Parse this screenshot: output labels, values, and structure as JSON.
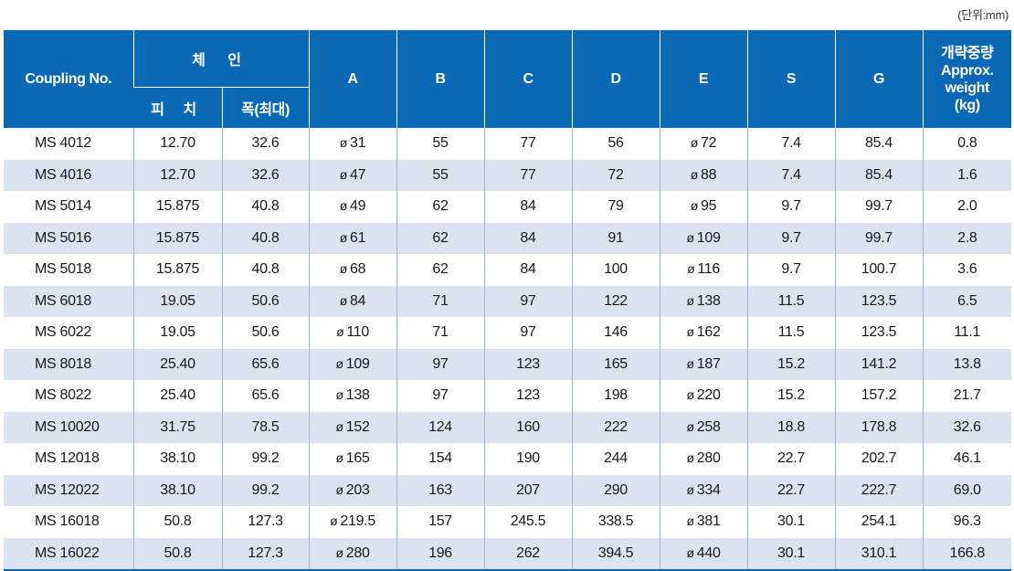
{
  "unit_label": "(단위:mm)",
  "header": {
    "coupling_no": "Coupling No.",
    "chain": "체 인",
    "pitch": "피 치",
    "width_max": "폭(최대)",
    "col_a": "A",
    "col_b": "B",
    "col_c": "C",
    "col_d": "D",
    "col_e": "E",
    "col_s": "S",
    "col_g": "G",
    "weight_ko": "개략중량",
    "weight_en_1": "Approx.",
    "weight_en_2": "weight",
    "weight_unit": "(kg)"
  },
  "diameter_symbol": "ø",
  "rows": [
    {
      "no": "MS 4012",
      "pitch": "12.70",
      "width": "32.6",
      "a": "31",
      "b": "55",
      "c": "77",
      "d": "56",
      "e": "72",
      "s": "7.4",
      "g": "85.4",
      "weight": "0.8"
    },
    {
      "no": "MS 4016",
      "pitch": "12.70",
      "width": "32.6",
      "a": "47",
      "b": "55",
      "c": "77",
      "d": "72",
      "e": "88",
      "s": "7.4",
      "g": "85.4",
      "weight": "1.6"
    },
    {
      "no": "MS 5014",
      "pitch": "15.875",
      "width": "40.8",
      "a": "49",
      "b": "62",
      "c": "84",
      "d": "79",
      "e": "95",
      "s": "9.7",
      "g": "99.7",
      "weight": "2.0"
    },
    {
      "no": "MS 5016",
      "pitch": "15.875",
      "width": "40.8",
      "a": "61",
      "b": "62",
      "c": "84",
      "d": "91",
      "e": "109",
      "s": "9.7",
      "g": "99.7",
      "weight": "2.8"
    },
    {
      "no": "MS 5018",
      "pitch": "15.875",
      "width": "40.8",
      "a": "68",
      "b": "62",
      "c": "84",
      "d": "100",
      "e": "116",
      "s": "9.7",
      "g": "100.7",
      "weight": "3.6"
    },
    {
      "no": "MS 6018",
      "pitch": "19.05",
      "width": "50.6",
      "a": "84",
      "b": "71",
      "c": "97",
      "d": "122",
      "e": "138",
      "s": "11.5",
      "g": "123.5",
      "weight": "6.5"
    },
    {
      "no": "MS 6022",
      "pitch": "19.05",
      "width": "50.6",
      "a": "110",
      "b": "71",
      "c": "97",
      "d": "146",
      "e": "162",
      "s": "11.5",
      "g": "123.5",
      "weight": "11.1"
    },
    {
      "no": "MS 8018",
      "pitch": "25.40",
      "width": "65.6",
      "a": "109",
      "b": "97",
      "c": "123",
      "d": "165",
      "e": "187",
      "s": "15.2",
      "g": "141.2",
      "weight": "13.8"
    },
    {
      "no": "MS 8022",
      "pitch": "25.40",
      "width": "65.6",
      "a": "138",
      "b": "97",
      "c": "123",
      "d": "198",
      "e": "220",
      "s": "15.2",
      "g": "157.2",
      "weight": "21.7"
    },
    {
      "no": "MS 10020",
      "pitch": "31.75",
      "width": "78.5",
      "a": "152",
      "b": "124",
      "c": "160",
      "d": "222",
      "e": "258",
      "s": "18.8",
      "g": "178.8",
      "weight": "32.6"
    },
    {
      "no": "MS 12018",
      "pitch": "38.10",
      "width": "99.2",
      "a": "165",
      "b": "154",
      "c": "190",
      "d": "244",
      "e": "280",
      "s": "22.7",
      "g": "202.7",
      "weight": "46.1"
    },
    {
      "no": "MS 12022",
      "pitch": "38.10",
      "width": "99.2",
      "a": "203",
      "b": "163",
      "c": "207",
      "d": "290",
      "e": "334",
      "s": "22.7",
      "g": "222.7",
      "weight": "69.0"
    },
    {
      "no": "MS 16018",
      "pitch": "50.8",
      "width": "127.3",
      "a": "219.5",
      "b": "157",
      "c": "245.5",
      "d": "338.5",
      "e": "381",
      "s": "30.1",
      "g": "254.1",
      "weight": "96.3"
    },
    {
      "no": "MS 16022",
      "pitch": "50.8",
      "width": "127.3",
      "a": "280",
      "b": "196",
      "c": "262",
      "d": "394.5",
      "e": "440",
      "s": "30.1",
      "g": "310.1",
      "weight": "166.8"
    }
  ]
}
